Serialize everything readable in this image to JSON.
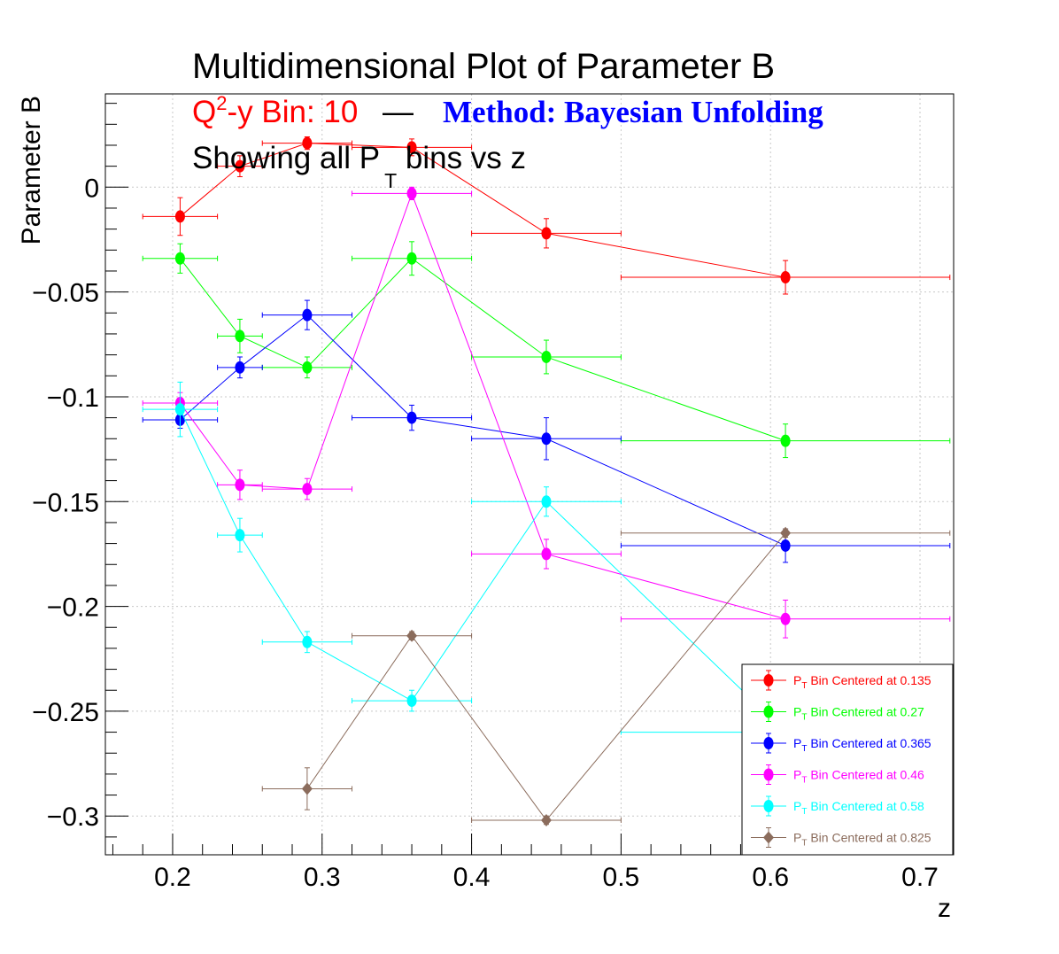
{
  "title": "Multidimensional Plot of Parameter B",
  "subtitle": {
    "bin_prefix": "Q",
    "bin_sup": "2",
    "bin_rest": "-y Bin: 10",
    "dash": "—",
    "method": "Method: Bayesian Unfolding",
    "showing_prefix": "Showing all P",
    "showing_sub": "T",
    "showing_suffix": " bins vs z"
  },
  "colors": {
    "title": "#000000",
    "bin_text": "#ff0000",
    "method_text": "#0000ff",
    "grid": "#c8c8c8"
  },
  "chart_data": {
    "type": "scatter",
    "title": "Multidimensional Plot of Parameter B",
    "xlabel": "z",
    "ylabel": "Parameter B",
    "xlim": [
      0.155,
      0.7225
    ],
    "ylim": [
      -0.3185,
      0.0445
    ],
    "xticks": [
      0.2,
      0.3,
      0.4,
      0.5,
      0.6,
      0.7
    ],
    "xtick_labels": [
      "0.2",
      "0.3",
      "0.4",
      "0.5",
      "0.6",
      "0.7"
    ],
    "yticks": [
      0,
      -0.05,
      -0.1,
      -0.15,
      -0.2,
      -0.25,
      -0.3
    ],
    "ytick_labels": [
      "0",
      "−0.05",
      "−0.1",
      "−0.15",
      "−0.2",
      "−0.25",
      "−0.3"
    ],
    "grid": true,
    "legend_position": "bottom-right",
    "series": [
      {
        "name": "P_T Bin Centered at 0.135",
        "legend_prefix": "P",
        "legend_sub": "T",
        "legend_text": " Bin Centered at 0.135",
        "color": "#ff0000",
        "marker": "circle",
        "points": [
          {
            "x": 0.205,
            "y": -0.014,
            "xerr": [
              0.025,
              0.025
            ],
            "yerr": 0.009
          },
          {
            "x": 0.245,
            "y": 0.01,
            "xerr": [
              0.015,
              0.015
            ],
            "yerr": 0.005
          },
          {
            "x": 0.29,
            "y": 0.021,
            "xerr": [
              0.03,
              0.03
            ],
            "yerr": 0.003
          },
          {
            "x": 0.36,
            "y": 0.019,
            "xerr": [
              0.04,
              0.04
            ],
            "yerr": 0.004
          },
          {
            "x": 0.45,
            "y": -0.022,
            "xerr": [
              0.05,
              0.05
            ],
            "yerr": 0.007
          },
          {
            "x": 0.61,
            "y": -0.043,
            "xerr": [
              0.11,
              0.11
            ],
            "yerr": 0.008
          }
        ]
      },
      {
        "name": "P_T Bin Centered at 0.27",
        "legend_prefix": "P",
        "legend_sub": "T",
        "legend_text": " Bin Centered at 0.27",
        "color": "#00ff00",
        "marker": "circle",
        "points": [
          {
            "x": 0.205,
            "y": -0.034,
            "xerr": [
              0.025,
              0.025
            ],
            "yerr": 0.007
          },
          {
            "x": 0.245,
            "y": -0.071,
            "xerr": [
              0.015,
              0.015
            ],
            "yerr": 0.008
          },
          {
            "x": 0.29,
            "y": -0.086,
            "xerr": [
              0.03,
              0.03
            ],
            "yerr": 0.005
          },
          {
            "x": 0.36,
            "y": -0.034,
            "xerr": [
              0.04,
              0.04
            ],
            "yerr": 0.008
          },
          {
            "x": 0.45,
            "y": -0.081,
            "xerr": [
              0.05,
              0.05
            ],
            "yerr": 0.008
          },
          {
            "x": 0.61,
            "y": -0.121,
            "xerr": [
              0.11,
              0.11
            ],
            "yerr": 0.008
          }
        ]
      },
      {
        "name": "P_T Bin Centered at 0.365",
        "legend_prefix": "P",
        "legend_sub": "T",
        "legend_text": " Bin Centered at 0.365",
        "color": "#0000ff",
        "marker": "circle",
        "points": [
          {
            "x": 0.205,
            "y": -0.111,
            "xerr": [
              0.025,
              0.025
            ],
            "yerr": 0.004
          },
          {
            "x": 0.245,
            "y": -0.086,
            "xerr": [
              0.015,
              0.015
            ],
            "yerr": 0.005
          },
          {
            "x": 0.29,
            "y": -0.061,
            "xerr": [
              0.03,
              0.03
            ],
            "yerr": 0.007
          },
          {
            "x": 0.36,
            "y": -0.11,
            "xerr": [
              0.04,
              0.04
            ],
            "yerr": 0.006
          },
          {
            "x": 0.45,
            "y": -0.12,
            "xerr": [
              0.05,
              0.05
            ],
            "yerr": 0.01
          },
          {
            "x": 0.61,
            "y": -0.171,
            "xerr": [
              0.11,
              0.11
            ],
            "yerr": 0.008
          }
        ]
      },
      {
        "name": "P_T Bin Centered at 0.46",
        "legend_prefix": "P",
        "legend_sub": "T",
        "legend_text": " Bin Centered at 0.46",
        "color": "#ff00ff",
        "marker": "circle",
        "points": [
          {
            "x": 0.205,
            "y": -0.103,
            "xerr": [
              0.025,
              0.025
            ],
            "yerr": 0.005
          },
          {
            "x": 0.245,
            "y": -0.142,
            "xerr": [
              0.015,
              0.015
            ],
            "yerr": 0.007
          },
          {
            "x": 0.29,
            "y": -0.144,
            "xerr": [
              0.03,
              0.03
            ],
            "yerr": 0.005
          },
          {
            "x": 0.36,
            "y": -0.003,
            "xerr": [
              0.04,
              0.04
            ],
            "yerr": 0.003
          },
          {
            "x": 0.45,
            "y": -0.175,
            "xerr": [
              0.05,
              0.05
            ],
            "yerr": 0.007
          },
          {
            "x": 0.61,
            "y": -0.206,
            "xerr": [
              0.11,
              0.11
            ],
            "yerr": 0.009
          }
        ]
      },
      {
        "name": "P_T Bin Centered at 0.58",
        "legend_prefix": "P",
        "legend_sub": "T",
        "legend_text": " Bin Centered at 0.58",
        "color": "#00ffff",
        "marker": "circle",
        "points": [
          {
            "x": 0.205,
            "y": -0.106,
            "xerr": [
              0.025,
              0.025
            ],
            "yerr": 0.013
          },
          {
            "x": 0.245,
            "y": -0.166,
            "xerr": [
              0.015,
              0.015
            ],
            "yerr": 0.008
          },
          {
            "x": 0.29,
            "y": -0.217,
            "xerr": [
              0.03,
              0.03
            ],
            "yerr": 0.005
          },
          {
            "x": 0.36,
            "y": -0.245,
            "xerr": [
              0.04,
              0.04
            ],
            "yerr": 0.005
          },
          {
            "x": 0.45,
            "y": -0.15,
            "xerr": [
              0.05,
              0.05
            ],
            "yerr": 0.007
          },
          {
            "x": 0.61,
            "y": -0.26,
            "xerr": [
              0.11,
              0.11
            ],
            "yerr": 0.008
          }
        ]
      },
      {
        "name": "P_T Bin Centered at 0.825",
        "legend_prefix": "P",
        "legend_sub": "T",
        "legend_text": " Bin Centered at 0.825",
        "color": "#8b6c5c",
        "marker": "diamond",
        "points": [
          {
            "x": 0.29,
            "y": -0.287,
            "xerr": [
              0.03,
              0.03
            ],
            "yerr": 0.01
          },
          {
            "x": 0.36,
            "y": -0.214,
            "xerr": [
              0.04,
              0.04
            ],
            "yerr": 0.002
          },
          {
            "x": 0.45,
            "y": -0.302,
            "xerr": [
              0.05,
              0.05
            ],
            "yerr": 0.002
          },
          {
            "x": 0.61,
            "y": -0.165,
            "xerr": [
              0.11,
              0.11
            ],
            "yerr": 0.002
          }
        ]
      }
    ]
  }
}
